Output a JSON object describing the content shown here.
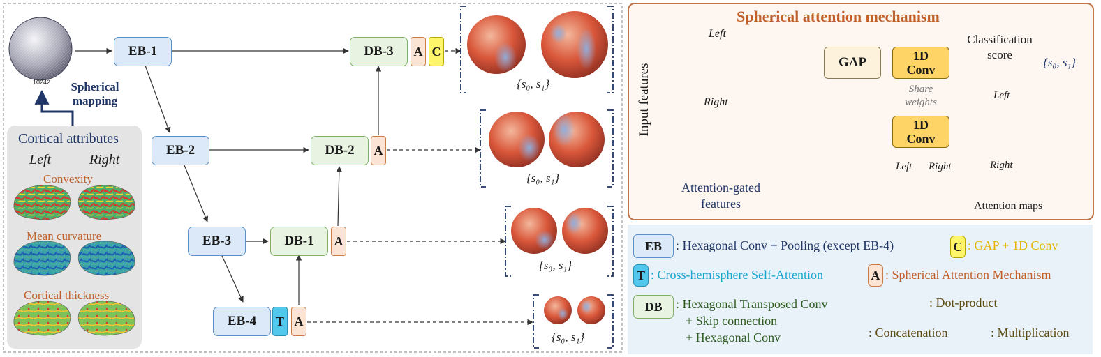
{
  "sphere_label": "10242",
  "mapping_label": [
    "Spherical",
    "mapping"
  ],
  "cortex": {
    "title": "Cortical attributes",
    "left": "Left",
    "right": "Right",
    "attr1": "Convexity",
    "attr2": "Mean curvature",
    "attr3": "Cortical thickness"
  },
  "blocks": {
    "eb1": "EB-1",
    "eb2": "EB-2",
    "eb3": "EB-3",
    "eb4": "EB-4",
    "db1": "DB-1",
    "db2": "DB-2",
    "db3": "DB-3",
    "a": "A",
    "c": "C",
    "t": "T"
  },
  "output_label": "{s₀, s₁}",
  "attention": {
    "title": "Spherical attention mechanism",
    "input_features": "Input features",
    "left": "Left",
    "right": "Right",
    "gap": "GAP",
    "conv": [
      "1D",
      "Conv"
    ],
    "share": [
      "Share",
      "weights"
    ],
    "class_score": [
      "Classification",
      "score"
    ],
    "map_left": "Left",
    "map_right": "Right",
    "maps_label": "Attention maps",
    "gated": [
      "Attention-gated",
      "features"
    ]
  },
  "legend": {
    "eb_key": "EB",
    "eb_desc": ": Hexagonal Conv + Pooling (except EB-4)",
    "c_key": "C",
    "c_desc": ": GAP + 1D Conv",
    "t_key": "T",
    "t_desc": ": Cross-hemisphere Self-Attention",
    "a_key": "A",
    "a_desc": ": Spherical Attention Mechanism",
    "db_key": "DB",
    "db_desc": [
      ": Hexagonal Transposed Conv",
      "+ Skip connection",
      "+ Hexagonal Conv"
    ],
    "dot_desc": ": Dot-product",
    "concat_desc": ": Concatenation",
    "mult_desc": ": Multiplication"
  },
  "colors": {
    "eb": "#dbe9f8",
    "db": "#e8f4e1",
    "a": "#fbe4d4",
    "c": "#fff56a",
    "t": "#52c9ec",
    "attention_title": "#c0602a",
    "cyan_text": "#1aa6cc",
    "yellow_text": "#e8b400",
    "navy": "#1f3566"
  }
}
